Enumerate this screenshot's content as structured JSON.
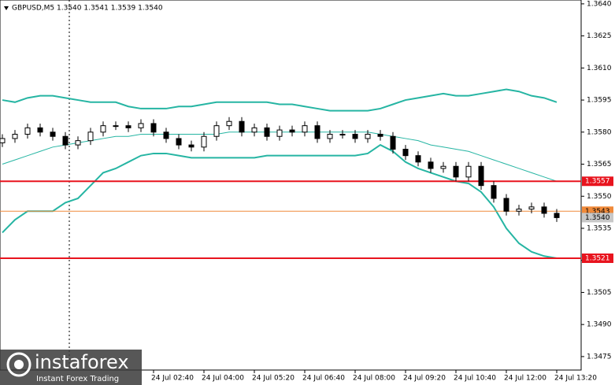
{
  "chart_data": {
    "type": "candlestick",
    "title": "GBPUSD,M5  1.3540 1.3541 1.3539 1.3540",
    "watermark": {
      "brand": "instaforex",
      "tagline": "Instant Forex Trading"
    },
    "categories": [
      null,
      null,
      null,
      null,
      null,
      null,
      null,
      null,
      null,
      null,
      null,
      null,
      "24 Jul 02:40",
      null,
      null,
      null,
      "24 Jul 04:00",
      null,
      null,
      null,
      "24 Jul 05:20",
      null,
      null,
      null,
      "24 Jul 06:40",
      null,
      null,
      null,
      "24 Jul 08:00",
      null,
      null,
      null,
      "24 Jul 09:20",
      null,
      null,
      null,
      "24 Jul 10:40",
      null,
      null,
      null,
      "24 Jul 12:00",
      null,
      null,
      null,
      "24 Jul 13:20"
    ],
    "open": [
      1.3575,
      1.3577,
      1.3579,
      1.3582,
      1.358,
      1.3578,
      1.3574,
      1.3576,
      1.358,
      1.3583,
      1.3583,
      1.3582,
      1.3584,
      1.358,
      1.3577,
      1.3574,
      1.3573,
      1.3578,
      1.3583,
      1.3585,
      1.358,
      1.3582,
      1.3578,
      1.3581,
      1.358,
      1.3583,
      1.3577,
      1.3579,
      1.3579,
      1.3577,
      1.3579,
      1.3578,
      1.3572,
      1.3569,
      1.3566,
      1.3563,
      1.3564,
      1.3559,
      1.3564,
      1.3555,
      1.3549,
      1.3543,
      1.3544,
      1.3545,
      1.3542
    ],
    "high": [
      1.3579,
      1.3581,
      1.3584,
      1.3584,
      1.3582,
      1.358,
      1.3578,
      1.3582,
      1.3585,
      1.3585,
      1.3585,
      1.3586,
      1.3586,
      1.3582,
      1.3579,
      1.3576,
      1.358,
      1.3585,
      1.3587,
      1.3587,
      1.3584,
      1.3584,
      1.3583,
      1.3583,
      1.3585,
      1.3585,
      1.3581,
      1.3581,
      1.3581,
      1.3581,
      1.3581,
      1.358,
      1.3574,
      1.3571,
      1.3568,
      1.3566,
      1.3566,
      1.3566,
      1.3566,
      1.3557,
      1.3551,
      1.3546,
      1.3547,
      1.3547,
      1.3544
    ],
    "low": [
      1.3573,
      1.3575,
      1.3577,
      1.3578,
      1.3576,
      1.3572,
      1.3572,
      1.3574,
      1.3578,
      1.3581,
      1.358,
      1.358,
      1.3578,
      1.3575,
      1.3572,
      1.3571,
      1.3571,
      1.3576,
      1.3581,
      1.3578,
      1.3578,
      1.3576,
      1.3576,
      1.3578,
      1.3578,
      1.3575,
      1.3575,
      1.3577,
      1.3575,
      1.3575,
      1.3576,
      1.357,
      1.3567,
      1.3564,
      1.3561,
      1.3561,
      1.3557,
      1.3557,
      1.3553,
      1.3547,
      1.3541,
      1.3541,
      1.3542,
      1.354,
      1.3538
    ],
    "close": [
      1.3577,
      1.3579,
      1.3582,
      1.358,
      1.3578,
      1.3574,
      1.3576,
      1.358,
      1.3583,
      1.3583,
      1.3582,
      1.3584,
      1.358,
      1.3577,
      1.3574,
      1.3573,
      1.3578,
      1.3583,
      1.3585,
      1.358,
      1.3582,
      1.3578,
      1.3581,
      1.358,
      1.3583,
      1.3577,
      1.3579,
      1.3579,
      1.3577,
      1.3579,
      1.3578,
      1.3572,
      1.3569,
      1.3566,
      1.3563,
      1.3564,
      1.3559,
      1.3564,
      1.3555,
      1.3549,
      1.3543,
      1.3544,
      1.3545,
      1.3542,
      1.354
    ],
    "series": [
      {
        "name": "Upper band",
        "color": "#26b5a3",
        "values": [
          1.3595,
          1.3594,
          1.3596,
          1.3597,
          1.3597,
          1.3596,
          1.3595,
          1.3594,
          1.3594,
          1.3594,
          1.3592,
          1.3591,
          1.3591,
          1.3591,
          1.3592,
          1.3592,
          1.3593,
          1.3594,
          1.3594,
          1.3594,
          1.3594,
          1.3594,
          1.3593,
          1.3593,
          1.3592,
          1.3591,
          1.359,
          1.359,
          1.359,
          1.359,
          1.3591,
          1.3593,
          1.3595,
          1.3596,
          1.3597,
          1.3598,
          1.3597,
          1.3597,
          1.3598,
          1.3599,
          1.36,
          1.3599,
          1.3597,
          1.3596,
          1.3594
        ]
      },
      {
        "name": "Middle band",
        "color": "#26b5a3",
        "values": [
          1.3565,
          1.3567,
          1.3569,
          1.3571,
          1.3573,
          1.3574,
          1.3575,
          1.3576,
          1.3577,
          1.3578,
          1.3578,
          1.3579,
          1.3579,
          1.3579,
          1.3579,
          1.3579,
          1.3579,
          1.3579,
          1.358,
          1.358,
          1.358,
          1.358,
          1.358,
          1.358,
          1.358,
          1.358,
          1.358,
          1.358,
          1.358,
          1.358,
          1.3579,
          1.3578,
          1.3577,
          1.3576,
          1.3574,
          1.3573,
          1.3572,
          1.3571,
          1.3569,
          1.3567,
          1.3565,
          1.3563,
          1.3561,
          1.3559,
          1.3557
        ]
      },
      {
        "name": "Lower band",
        "color": "#26b5a3",
        "values": [
          1.3533,
          1.3539,
          1.3543,
          1.3543,
          1.3543,
          1.3547,
          1.3549,
          1.3555,
          1.3561,
          1.3563,
          1.3566,
          1.3569,
          1.357,
          1.357,
          1.3569,
          1.3568,
          1.3568,
          1.3568,
          1.3568,
          1.3568,
          1.3568,
          1.3569,
          1.3569,
          1.3569,
          1.3569,
          1.3569,
          1.3569,
          1.3569,
          1.3569,
          1.357,
          1.3574,
          1.3571,
          1.3566,
          1.3563,
          1.3561,
          1.3559,
          1.3557,
          1.3556,
          1.3552,
          1.3545,
          1.3535,
          1.3528,
          1.3524,
          1.3522,
          1.3521
        ]
      }
    ],
    "levels": [
      {
        "value": 1.3557,
        "label": "1.3557",
        "color": "#e8141e"
      },
      {
        "value": 1.3521,
        "label": "1.3521",
        "color": "#e8141e"
      },
      {
        "value": 1.3543,
        "label": "1.3543",
        "color": "#f08a3a"
      },
      {
        "value": 1.354,
        "label": "1.3540",
        "color": "#c8c8c8"
      }
    ],
    "ylim": [
      1.34687,
      1.36418
    ],
    "yticks": [
      {
        "value": 1.364,
        "label": "1.3640"
      },
      {
        "value": 1.3625,
        "label": "1.3625"
      },
      {
        "value": 1.361,
        "label": "1.3610"
      },
      {
        "value": 1.3595,
        "label": "1.3595"
      },
      {
        "value": 1.358,
        "label": "1.3580"
      },
      {
        "value": 1.3565,
        "label": "1.3565"
      },
      {
        "value": 1.355,
        "label": "1.3550"
      },
      {
        "value": 1.3535,
        "label": "1.3535"
      },
      {
        "value": 1.352,
        "label": "1.3520"
      },
      {
        "value": 1.3505,
        "label": "1.3505"
      },
      {
        "value": 1.349,
        "label": "1.3490"
      },
      {
        "value": 1.3475,
        "label": "1.3475"
      }
    ]
  }
}
